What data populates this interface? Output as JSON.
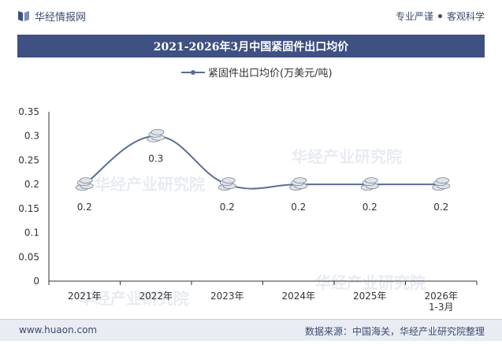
{
  "header": {
    "brand": "华经情报网",
    "tag_left": "专业严谨",
    "tag_right": "客观科学"
  },
  "footer": {
    "website": "www.huaon.com",
    "source": "数据来源：中国海关，华经产业研究院整理"
  },
  "watermark": "华经产业研究院",
  "chart_data": {
    "type": "line",
    "title": "2021-2026年3月中国紧固件出口均价",
    "categories": [
      "2021年",
      "2022年",
      "2023年",
      "2024年",
      "2025年",
      "2026年"
    ],
    "category_sublabels": [
      "",
      "",
      "",
      "",
      "",
      "1-3月"
    ],
    "series": [
      {
        "name": "紧固件出口均价(万美元/吨)",
        "values": [
          0.2,
          0.3,
          0.2,
          0.2,
          0.2,
          0.2
        ]
      }
    ],
    "data_labels": [
      "0.2",
      "0.3",
      "0.2",
      "0.2",
      "0.2",
      "0.2"
    ],
    "yticks": [
      "0",
      "0.05",
      "0.1",
      "0.15",
      "0.2",
      "0.25",
      "0.3",
      "0.35"
    ],
    "ylim": [
      0,
      0.35
    ],
    "legend_position": "top-center",
    "grid": false,
    "line_color": "#5a6e94",
    "marker": "coin-stack-icon"
  }
}
